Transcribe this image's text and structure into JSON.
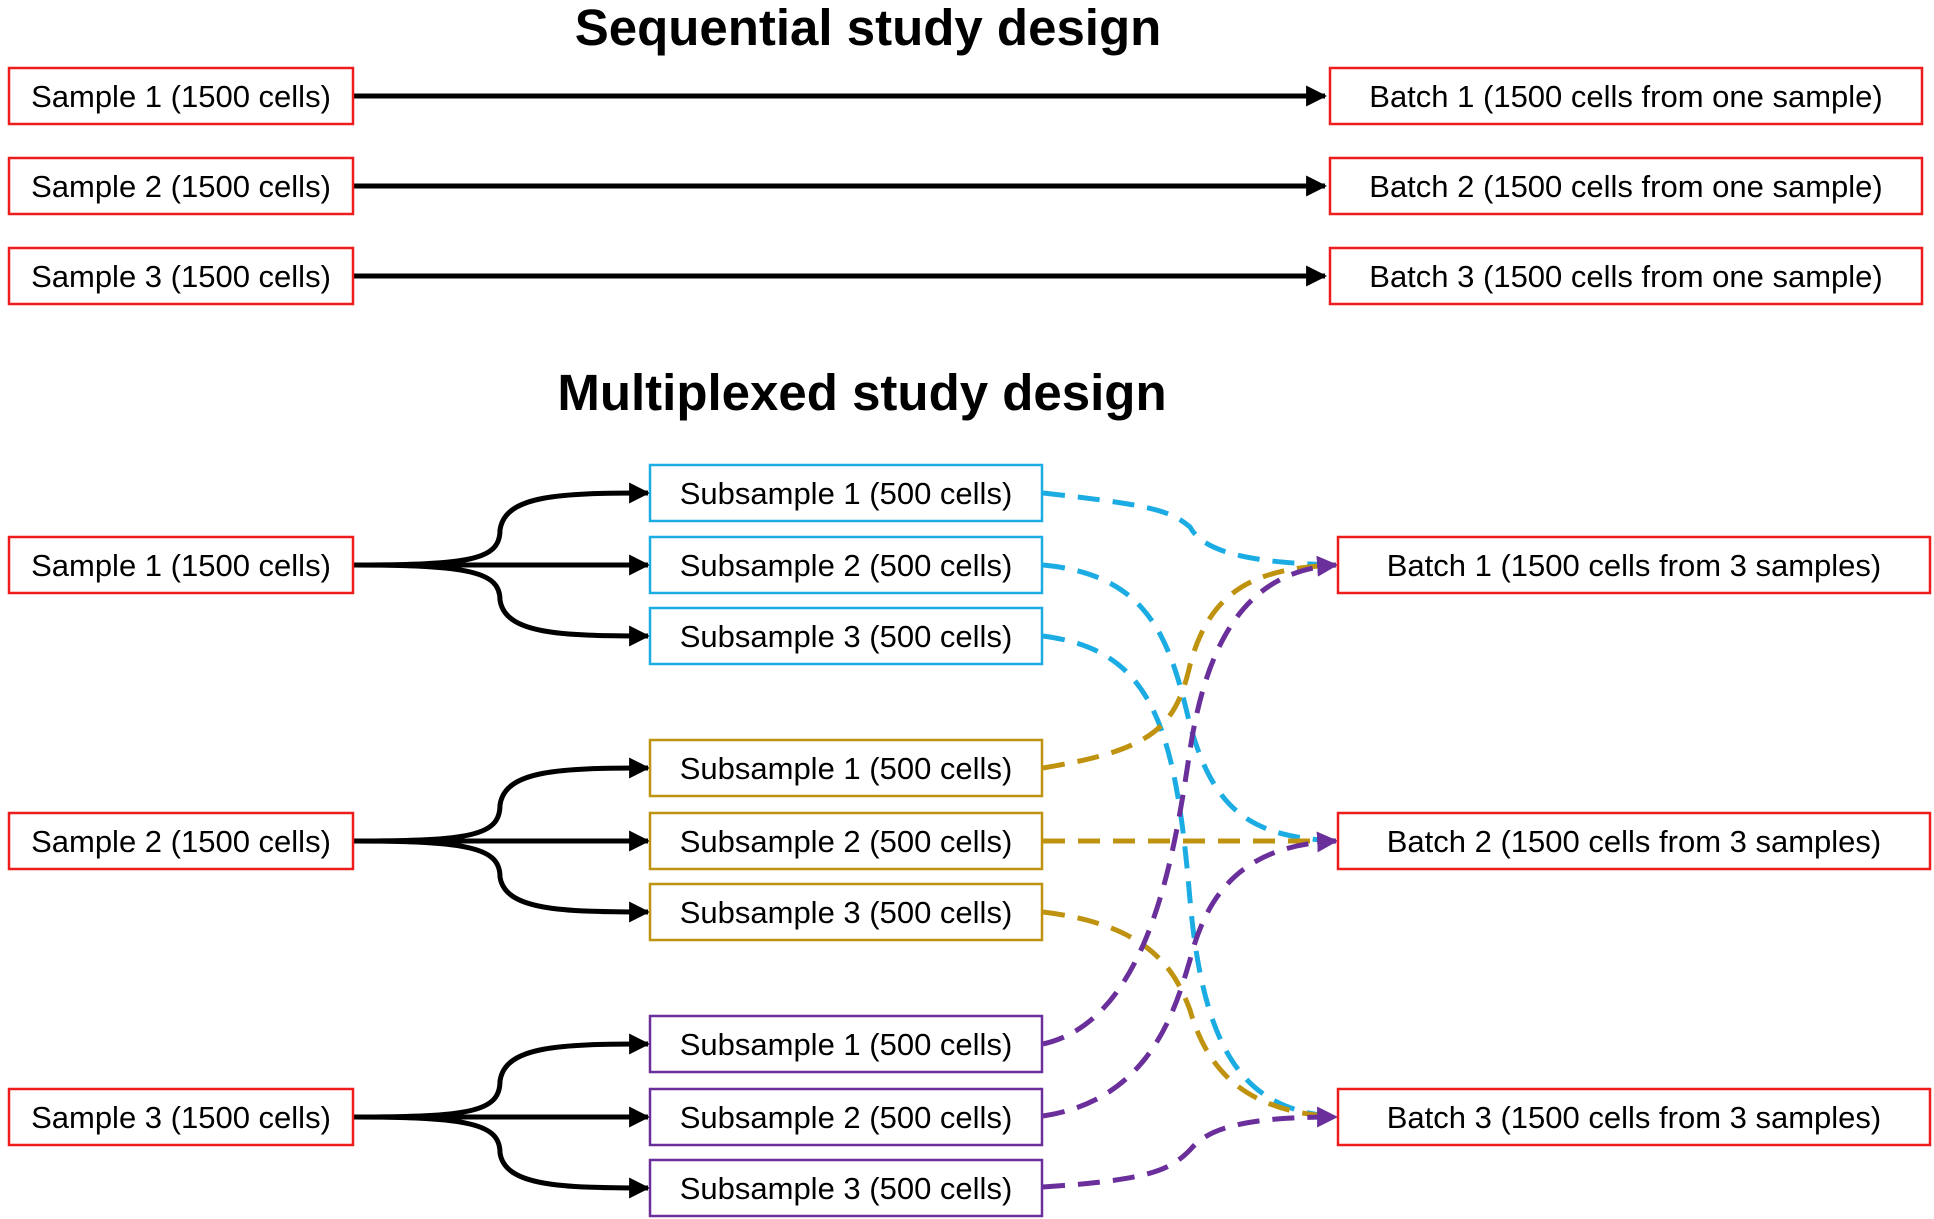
{
  "colors": {
    "sample": "#ee1c1c",
    "batch": "#ee1c1c",
    "sample_1_group": "#1aace2",
    "sample_2_group": "#bf930f",
    "sample_3_group": "#6a2f9b",
    "arrow": "#000000"
  },
  "sequential": {
    "title": "Sequential study design",
    "samples": [
      "Sample 1 (1500 cells)",
      "Sample 2 (1500 cells)",
      "Sample 3 (1500 cells)"
    ],
    "batches": [
      "Batch 1 (1500 cells from one sample)",
      "Batch 2 (1500 cells from one sample)",
      "Batch 3 (1500 cells from one sample)"
    ]
  },
  "multiplexed": {
    "title": "Multiplexed study design",
    "samples": [
      "Sample 1 (1500 cells)",
      "Sample 2 (1500 cells)",
      "Sample 3 (1500 cells)"
    ],
    "subsample_groups": [
      [
        "Subsample 1 (500 cells)",
        "Subsample 2 (500 cells)",
        "Subsample 3 (500 cells)"
      ],
      [
        "Subsample 1 (500 cells)",
        "Subsample 2 (500 cells)",
        "Subsample 3 (500 cells)"
      ],
      [
        "Subsample 1 (500 cells)",
        "Subsample 2 (500 cells)",
        "Subsample 3 (500 cells)"
      ]
    ],
    "batches": [
      "Batch 1 (1500 cells from 3 samples)",
      "Batch 2 (1500 cells from 3 samples)",
      "Batch 3 (1500 cells from 3 samples)"
    ]
  }
}
